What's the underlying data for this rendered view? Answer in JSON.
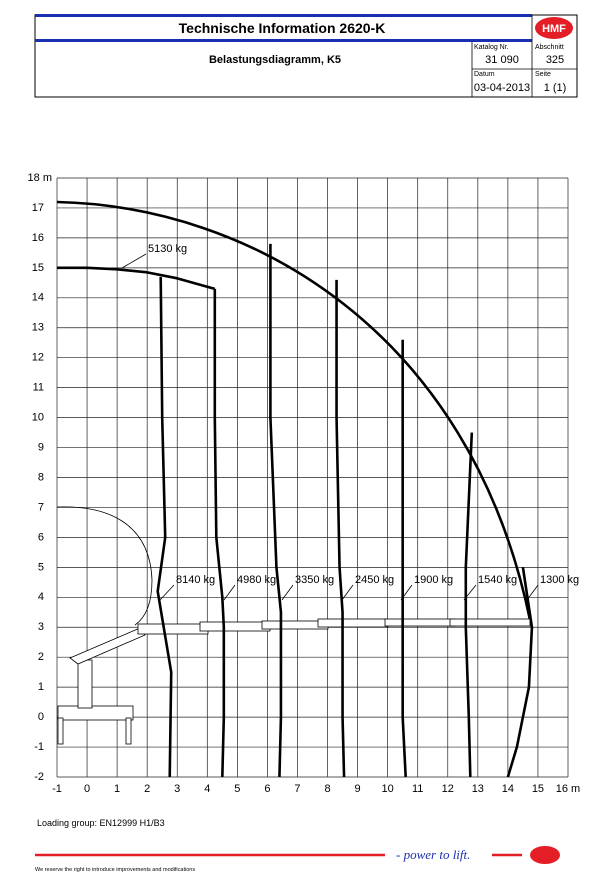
{
  "header": {
    "title": "Technische Information  2620-K",
    "logo": "HMF",
    "subtitle": "Belastungsdiagramm, K5",
    "catalog_label": "Katalog Nr.",
    "catalog": "31 090",
    "section_label": "Abschnitt",
    "section": "325",
    "date_label": "Datum",
    "date": "03-04-2013",
    "page_label": "Seite",
    "page": "1 (1)"
  },
  "chart_data": {
    "type": "line",
    "xlim": [
      -1,
      16
    ],
    "ylim": [
      -2,
      18
    ],
    "xticks": [
      -1,
      0,
      1,
      2,
      3,
      4,
      5,
      6,
      7,
      8,
      9,
      10,
      11,
      12,
      13,
      14,
      15,
      {
        "value": 16,
        "label": "16 m"
      }
    ],
    "yticks": [
      -2,
      -1,
      0,
      1,
      2,
      3,
      4,
      5,
      6,
      7,
      8,
      9,
      10,
      11,
      12,
      13,
      14,
      15,
      16,
      17,
      {
        "value": 18,
        "label": "18 m"
      }
    ],
    "grid": true,
    "series": [
      {
        "name": "5130 kg",
        "color": "#000000",
        "x": [
          -1,
          0,
          1,
          2,
          3,
          4.25
        ],
        "y": [
          15,
          15,
          14.95,
          14.85,
          14.65,
          14.3
        ]
      },
      {
        "name": "8140 kg",
        "color": "#000000",
        "x": [
          2.45,
          2.5,
          2.6,
          2.35,
          2.5,
          2.8,
          2.75
        ],
        "y": [
          14.7,
          10,
          6,
          4.2,
          3.3,
          1.5,
          -2
        ]
      },
      {
        "name": "4980 kg",
        "color": "#000000",
        "x": [
          4.25,
          4.25,
          4.3,
          4.5,
          4.55,
          4.55,
          4.5
        ],
        "y": [
          14.3,
          10,
          6,
          4,
          3,
          0,
          -2
        ]
      },
      {
        "name": "3350 kg",
        "color": "#000000",
        "x": [
          6.1,
          6.1,
          6.3,
          6.45,
          6.45,
          6.4
        ],
        "y": [
          15.8,
          10,
          5,
          3.5,
          0,
          -2
        ]
      },
      {
        "name": "2450 kg",
        "color": "#000000",
        "x": [
          8.3,
          8.3,
          8.4,
          8.5,
          8.5,
          8.55
        ],
        "y": [
          14.6,
          10,
          5,
          3.5,
          0,
          -2
        ]
      },
      {
        "name": "1900 kg",
        "color": "#000000",
        "x": [
          10.5,
          10.5,
          10.5,
          10.5,
          10.6
        ],
        "y": [
          12.6,
          8,
          3.5,
          0,
          -2
        ]
      },
      {
        "name": "1540 kg",
        "color": "#000000",
        "x": [
          12.8,
          12.6,
          12.6,
          12.7,
          12.75
        ],
        "y": [
          9.5,
          5,
          3,
          0,
          -2
        ]
      },
      {
        "name": "1300 kg",
        "color": "#000000",
        "x": [
          14.5,
          14.8,
          14.7,
          14.3,
          14
        ],
        "y": [
          5,
          3,
          1,
          -1,
          -2
        ]
      }
    ]
  },
  "footer": {
    "loading_group": "Loading group: EN12999 H1/B3",
    "disclaimer": "We reserve the right to introduce improvements and modifications",
    "slogan": "- power to lift."
  }
}
